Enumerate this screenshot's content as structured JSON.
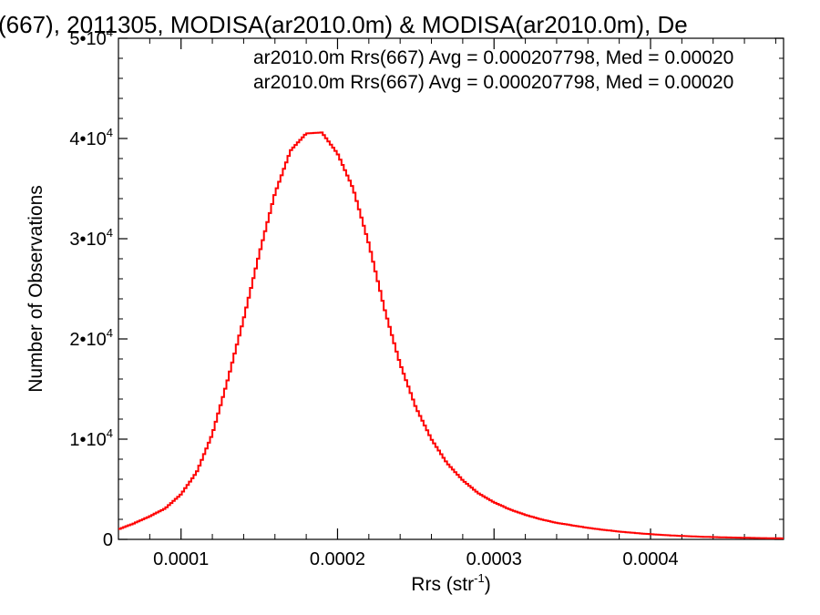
{
  "chart_data": {
    "type": "line",
    "title": "(667), 2011305, MODISA(ar2010.0m) & MODISA(ar2010.0m), De",
    "xlabel": "Rrs (str",
    "xlabel_sup": "-1",
    "xlabel_close": ")",
    "ylabel": "Number of Observations",
    "xlim": [
      6e-05,
      0.000485
    ],
    "ylim": [
      0,
      50000
    ],
    "x_ticks": [
      {
        "value": 0.0001,
        "label": "0.0001"
      },
      {
        "value": 0.0002,
        "label": "0.0002"
      },
      {
        "value": 0.0003,
        "label": "0.0003"
      },
      {
        "value": 0.0004,
        "label": "0.0004"
      }
    ],
    "y_ticks": [
      {
        "value": 0,
        "label": "0",
        "sup": ""
      },
      {
        "value": 10000,
        "label": "1•10",
        "sup": "4"
      },
      {
        "value": 20000,
        "label": "2•10",
        "sup": "4"
      },
      {
        "value": 30000,
        "label": "3•10",
        "sup": "4"
      },
      {
        "value": 40000,
        "label": "4•10",
        "sup": "4"
      },
      {
        "value": 50000,
        "label": "5•10",
        "sup": "4"
      }
    ],
    "grid": false,
    "legend": [
      {
        "text": "ar2010.0m Rrs(667) Avg = 0.000207798, Med = 0.00020",
        "color": "#000000"
      },
      {
        "text": "ar2010.0m Rrs(667) Avg = 0.000207798, Med = 0.00020",
        "color": "#ff0000"
      }
    ],
    "series": [
      {
        "color": "#ff0000",
        "style": "step",
        "x": [
          6e-05,
          7e-05,
          8e-05,
          9e-05,
          0.0001,
          0.00011,
          0.00012,
          0.00013,
          0.00014,
          0.00015,
          0.00016,
          0.00017,
          0.00018,
          0.00019,
          0.0002,
          0.00021,
          0.00022,
          0.00023,
          0.00024,
          0.00025,
          0.00026,
          0.00027,
          0.00028,
          0.00029,
          0.0003,
          0.00031,
          0.00032,
          0.00033,
          0.00034,
          0.00035,
          0.00036,
          0.00037,
          0.00038,
          0.00039,
          0.0004,
          0.00041,
          0.00042,
          0.00043,
          0.00044,
          0.00045,
          0.00046,
          0.00047,
          0.00048,
          0.000485
        ],
        "y": [
          1000,
          1600,
          2300,
          3100,
          4500,
          6700,
          10500,
          16000,
          22000,
          28500,
          34500,
          38800,
          40500,
          40600,
          38500,
          35000,
          29500,
          23000,
          17500,
          13200,
          10000,
          7600,
          5900,
          4600,
          3700,
          3000,
          2450,
          2000,
          1650,
          1400,
          1150,
          950,
          780,
          640,
          520,
          420,
          340,
          280,
          230,
          190,
          160,
          130,
          110,
          100
        ]
      }
    ]
  }
}
